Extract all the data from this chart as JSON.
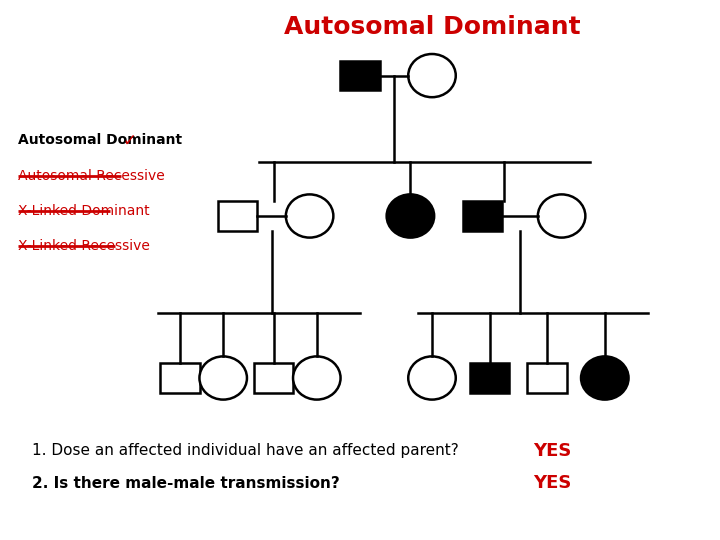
{
  "title": "Autosomal Dominant",
  "title_color": "#CC0000",
  "title_fontsize": 18,
  "title_fontweight": "bold",
  "background_color": "#ffffff",
  "left_labels": [
    {
      "text": "Autosomal Dominant",
      "strikethrough": false,
      "checkmark": true,
      "bold": true,
      "color": "#000000"
    },
    {
      "text": "Autosomal Recessive",
      "strikethrough": true,
      "checkmark": false,
      "bold": false,
      "color": "#CC0000"
    },
    {
      "text": "X-Linked Dominant",
      "strikethrough": true,
      "checkmark": false,
      "bold": false,
      "color": "#CC0000"
    },
    {
      "text": "X-Linked Recessive",
      "strikethrough": true,
      "checkmark": false,
      "bold": false,
      "color": "#CC0000"
    }
  ],
  "question1": "1. Dose an affected individual have an affected parent?",
  "question1_bold": false,
  "answer1": "YES",
  "question2": "2. Is there male-male transmission?",
  "question2_bold": true,
  "answer2": "YES",
  "answer_color": "#CC0000",
  "question_fontsize": 11,
  "answer_fontsize": 13,
  "lw": 1.8
}
